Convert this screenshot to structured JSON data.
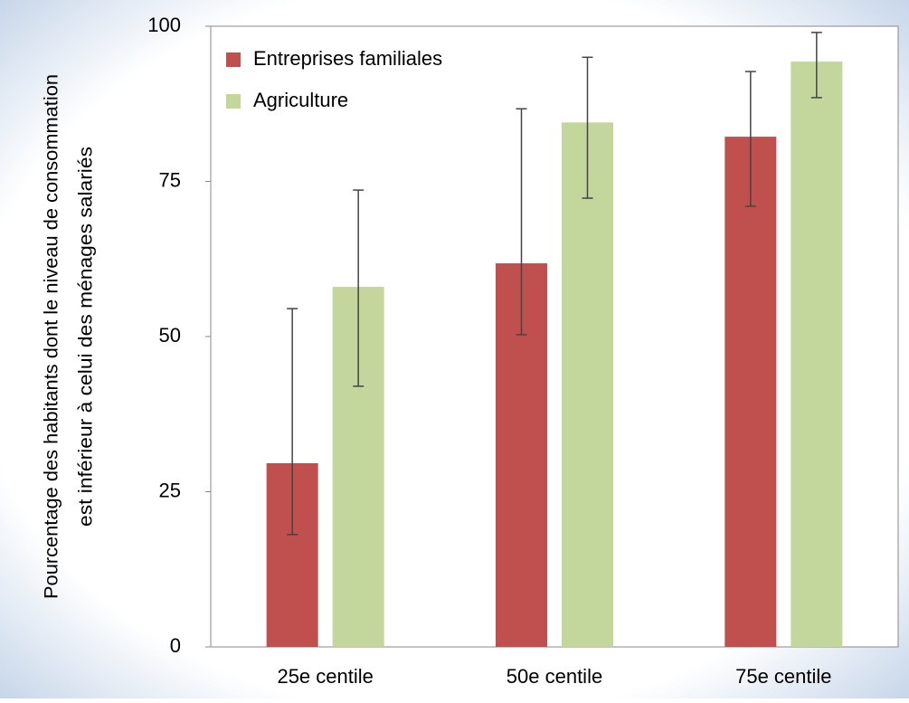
{
  "chart_data": {
    "type": "bar",
    "y_label": [
      "Pourcentage des habitants dont le niveau de consommation",
      "est inférieur à celui des ménages salariés"
    ],
    "categories": [
      "25e centile",
      "50e centile",
      "75e centile"
    ],
    "series": [
      {
        "name": "Entreprises familiales",
        "color": "#c0504d",
        "values": [
          29.6,
          61.8,
          82.2
        ],
        "errors_low": [
          18.1,
          50.3,
          71.0
        ],
        "errors_high": [
          54.5,
          86.7,
          92.7
        ]
      },
      {
        "name": "Agriculture",
        "color": "#c3d69b",
        "values": [
          58.0,
          84.5,
          94.3
        ],
        "errors_low": [
          42.0,
          72.3,
          88.5
        ],
        "errors_high": [
          73.6,
          95.0,
          99.0
        ]
      }
    ],
    "ylim": [
      0,
      100
    ],
    "yticks": [
      0,
      25,
      50,
      75,
      100
    ],
    "grid": false,
    "legend": "upper-left"
  }
}
